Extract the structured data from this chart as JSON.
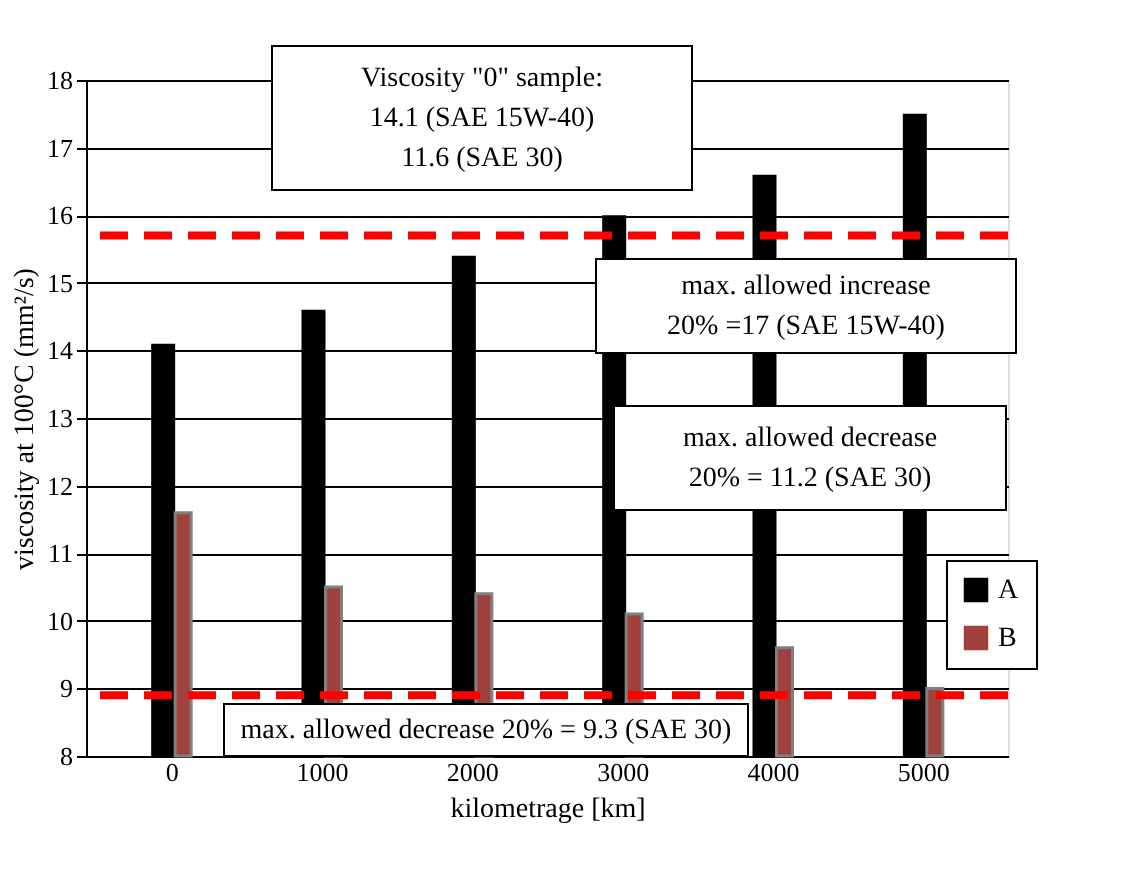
{
  "chart_data": {
    "type": "bar",
    "xlabel": "kilometrage [km]",
    "ylabel": "viscosity at  100°C (mm²/s)",
    "categories": [
      "0",
      "1000",
      "2000",
      "3000",
      "4000",
      "5000"
    ],
    "series": [
      {
        "name": "A",
        "color": "#000000",
        "values": [
          14.1,
          14.6,
          15.4,
          16.0,
          16.6,
          17.5
        ]
      },
      {
        "name": "B",
        "color": "#a0413c",
        "values": [
          11.6,
          10.5,
          10.4,
          10.1,
          9.6,
          9.0
        ]
      }
    ],
    "ylim": [
      8,
      18
    ],
    "yticks": [
      8,
      9,
      10,
      11,
      12,
      13,
      14,
      15,
      16,
      17,
      18
    ],
    "grid": "y",
    "legend": "right",
    "ref_lines": [
      {
        "axis": "y",
        "value": 15.7,
        "label": null,
        "color": "#ff0000",
        "line_style": "dashed"
      },
      {
        "axis": "y",
        "value": 8.9,
        "label": null,
        "color": "#ff0000",
        "line_style": "dashed"
      }
    ],
    "annotations": [
      "Viscosity \"0\" sample:\n14.1  (SAE 15W-40)\n11.6 (SAE 30)",
      "max. allowed increase\n20% =17 (SAE 15W-40)",
      "max. allowed decrease\n20% = 11.2 (SAE 30)",
      "max. allowed decrease 20% = 9.3 (SAE 30)"
    ]
  }
}
